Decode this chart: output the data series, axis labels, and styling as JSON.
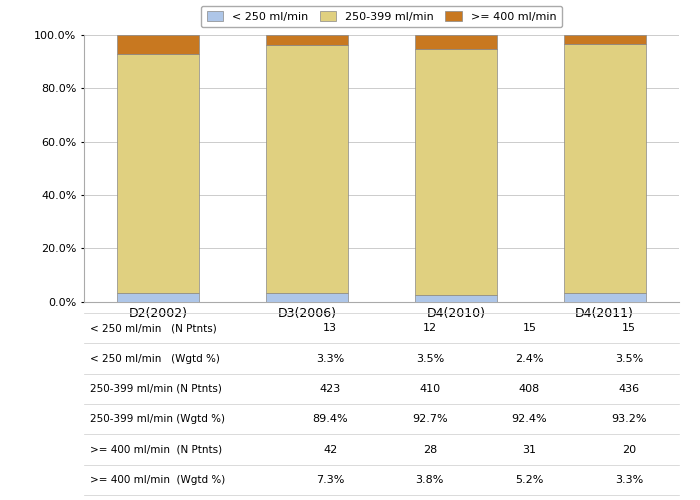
{
  "categories": [
    "D2(2002)",
    "D3(2006)",
    "D4(2010)",
    "D4(2011)"
  ],
  "series": [
    {
      "label": "< 250 ml/min",
      "color": "#aec6e8",
      "values": [
        3.3,
        3.5,
        2.4,
        3.5
      ]
    },
    {
      "label": "250-399 ml/min",
      "color": "#e0d080",
      "values": [
        89.4,
        92.7,
        92.4,
        93.2
      ]
    },
    {
      "label": ">= 400 ml/min",
      "color": "#c87820",
      "values": [
        7.3,
        3.8,
        5.2,
        3.3
      ]
    }
  ],
  "ylim": [
    0,
    100
  ],
  "yticks": [
    0,
    20,
    40,
    60,
    80,
    100
  ],
  "ytick_labels": [
    "0.0%",
    "20.0%",
    "40.0%",
    "60.0%",
    "80.0%",
    "100.0%"
  ],
  "table_rows": [
    {
      "label": "< 250 ml/min   (N Ptnts)",
      "values": [
        "13",
        "12",
        "15",
        "15"
      ]
    },
    {
      "label": "< 250 ml/min   (Wgtd %)",
      "values": [
        "3.3%",
        "3.5%",
        "2.4%",
        "3.5%"
      ]
    },
    {
      "label": "250-399 ml/min (N Ptnts)",
      "values": [
        "423",
        "410",
        "408",
        "436"
      ]
    },
    {
      "label": "250-399 ml/min (Wgtd %)",
      "values": [
        "89.4%",
        "92.7%",
        "92.4%",
        "93.2%"
      ]
    },
    {
      ">= 400 ml/min  (N Ptnts)": null,
      "label": ">= 400 ml/min  (N Ptnts)",
      "values": [
        "42",
        "28",
        "31",
        "20"
      ]
    },
    {
      "label": ">= 400 ml/min  (Wgtd %)",
      "values": [
        "7.3%",
        "3.8%",
        "5.2%",
        "3.3%"
      ]
    }
  ],
  "legend_labels": [
    "< 250 ml/min",
    "250-399 ml/min",
    ">= 400 ml/min"
  ],
  "legend_colors": [
    "#aec6e8",
    "#e0d080",
    "#c87820"
  ],
  "bar_width": 0.55,
  "background_color": "#ffffff",
  "plot_bg_color": "#ffffff",
  "grid_color": "#cccccc"
}
